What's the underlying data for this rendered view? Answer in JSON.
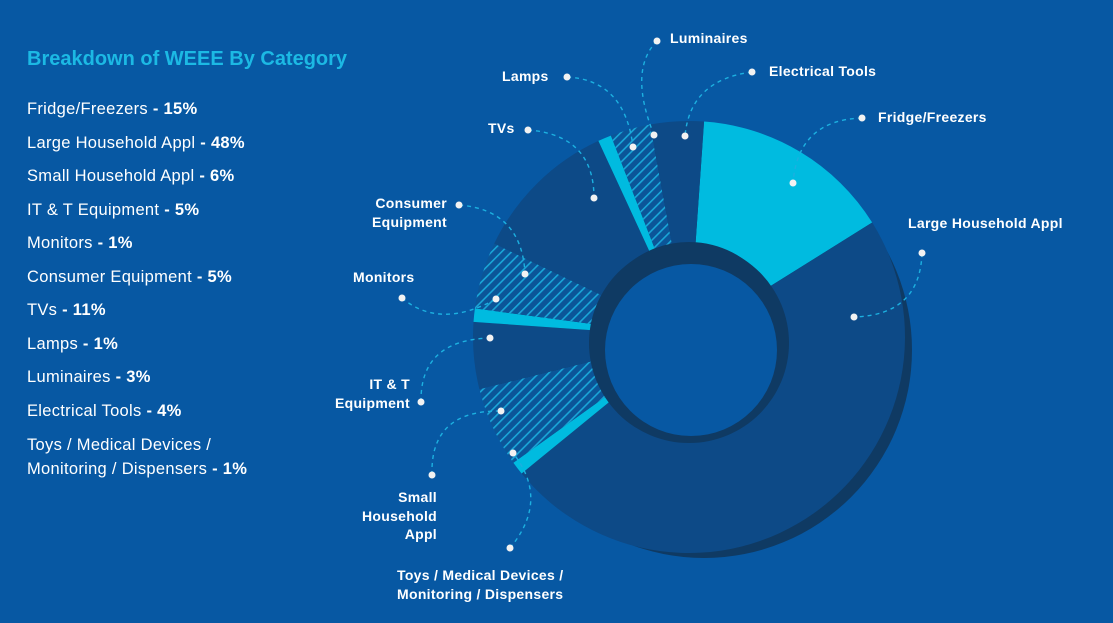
{
  "title": "Breakdown of WEEE By Category",
  "legend": [
    {
      "name": "Fridge/Freezers",
      "pct": "- 15%"
    },
    {
      "name": "Large Household Appl",
      "pct": "- 48%"
    },
    {
      "name": "Small Household Appl",
      "pct": "- 6%"
    },
    {
      "name": "IT & T Equipment",
      "pct": "- 5%"
    },
    {
      "name": "Monitors",
      "pct": "- 1%"
    },
    {
      "name": "Consumer Equipment",
      "pct": "- 5%"
    },
    {
      "name": "TVs",
      "pct": "- 11%"
    },
    {
      "name": "Lamps",
      "pct": "- 1%"
    },
    {
      "name": "Luminaires",
      "pct": "- 3%"
    },
    {
      "name": "Electrical Tools",
      "pct": "- 4%"
    },
    {
      "name": "Toys / Medical Devices /",
      "name2": "Monitoring / Dispensers",
      "pct": "- 1%"
    }
  ],
  "colors": {
    "background": "#0758a3",
    "dark": "#0d4a87",
    "cyan": "#00bbe0",
    "shadow": "#0f3a63",
    "title": "#1cb9e4"
  },
  "chart_data": {
    "type": "pie",
    "donut": true,
    "title": "Breakdown of WEEE By Category",
    "direction": "clockwise from top",
    "slices": [
      {
        "label": "Fridge/Freezers",
        "value": 15,
        "style": "cyan"
      },
      {
        "label": "Large Household Appl",
        "value": 48,
        "style": "dark"
      },
      {
        "label": "Toys / Medical Devices / Monitoring / Dispensers",
        "value": 1,
        "style": "cyan"
      },
      {
        "label": "Small Household Appl",
        "value": 6,
        "style": "hatched"
      },
      {
        "label": "IT & T Equipment",
        "value": 5,
        "style": "dark"
      },
      {
        "label": "Monitors",
        "value": 1,
        "style": "cyan"
      },
      {
        "label": "Consumer Equipment",
        "value": 5,
        "style": "hatched"
      },
      {
        "label": "TVs",
        "value": 11,
        "style": "dark"
      },
      {
        "label": "Lamps",
        "value": 1,
        "style": "cyan"
      },
      {
        "label": "Luminaires",
        "value": 3,
        "style": "hatched"
      },
      {
        "label": "Electrical Tools",
        "value": 4,
        "style": "dark"
      }
    ],
    "callouts": {
      "luminaires": "Luminaires",
      "lamps": "Lamps",
      "electrical_tools": "Electrical Tools",
      "fridge": "Fridge/Freezers",
      "tvs": "TVs",
      "large": "Large Household Appl",
      "consumer": [
        "Consumer",
        "Equipment"
      ],
      "monitors": "Monitors",
      "itt": [
        "IT & T",
        "Equipment"
      ],
      "small": [
        "Small",
        "Household",
        "Appl"
      ],
      "toys": [
        "Toys / Medical Devices /",
        "Monitoring / Dispensers"
      ]
    }
  }
}
